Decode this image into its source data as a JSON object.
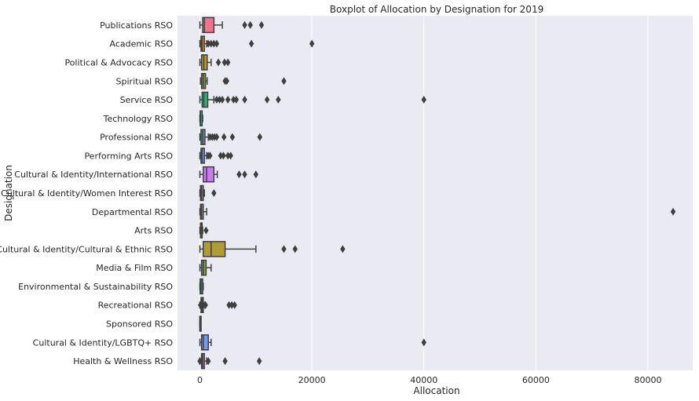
{
  "chart_data": {
    "type": "boxplot",
    "orientation": "horizontal",
    "title": "Boxplot of Allocation by Designation for 2019",
    "xlabel": "Allocation",
    "ylabel": "Designation",
    "xlim": [
      -4000,
      88000
    ],
    "xticks": [
      0,
      20000,
      40000,
      60000,
      80000
    ],
    "grid": true,
    "style": "seaborn-darkgrid",
    "background_color": "#eaeaf2",
    "series": [
      {
        "category": "Publications RSO",
        "color": "#f77189",
        "whisker_low": 0,
        "q1": 500,
        "median": 800,
        "q3": 2500,
        "whisker_high": 4000,
        "outliers": [
          8000,
          9000,
          11000
        ]
      },
      {
        "category": "Academic RSO",
        "color": "#dc8932",
        "whisker_low": 0,
        "q1": 200,
        "median": 400,
        "q3": 800,
        "whisker_high": 1200,
        "outliers": [
          1500,
          2000,
          2500,
          3000,
          9200,
          20000
        ]
      },
      {
        "category": "Political & Advocacy RSO",
        "color": "#ae9d31",
        "whisker_low": 0,
        "q1": 300,
        "median": 700,
        "q3": 1300,
        "whisker_high": 2000,
        "outliers": [
          3300,
          4400,
          5000
        ]
      },
      {
        "category": "Spiritual RSO",
        "color": "#77ab31",
        "whisker_low": 100,
        "q1": 300,
        "median": 600,
        "q3": 1000,
        "whisker_high": 1300,
        "outliers": [
          4500,
          4800,
          15000
        ]
      },
      {
        "category": "Service RSO",
        "color": "#33b07a",
        "whisker_low": 0,
        "q1": 400,
        "median": 700,
        "q3": 1400,
        "whisker_high": 2500,
        "outliers": [
          3000,
          3500,
          4000,
          5000,
          6000,
          6500,
          8000,
          12000,
          14000,
          40000
        ]
      },
      {
        "category": "Technology RSO",
        "color": "#36ada4",
        "whisker_low": 0,
        "q1": 50,
        "median": 100,
        "q3": 400,
        "whisker_high": 500,
        "outliers": []
      },
      {
        "category": "Professional RSO",
        "color": "#38a9c5",
        "whisker_low": 0,
        "q1": 200,
        "median": 500,
        "q3": 900,
        "whisker_high": 1500,
        "outliers": [
          1800,
          2200,
          2600,
          3000,
          4300,
          5800,
          10700
        ]
      },
      {
        "category": "Performing Arts RSO",
        "color": "#6e9bf4",
        "whisker_low": 0,
        "q1": 200,
        "median": 400,
        "q3": 800,
        "whisker_high": 1200,
        "outliers": [
          1500,
          1800,
          3700,
          4200,
          5000,
          5500
        ]
      },
      {
        "category": "Cultural & Identity/International RSO",
        "color": "#cc7af4",
        "whisker_low": 0,
        "q1": 600,
        "median": 1200,
        "q3": 2500,
        "whisker_high": 3100,
        "outliers": [
          7000,
          8000,
          10000
        ]
      },
      {
        "category": "Cultural & Identity/Women Interest RSO",
        "color": "#f565cc",
        "whisker_low": 0,
        "q1": 100,
        "median": 300,
        "q3": 600,
        "whisker_high": 800,
        "outliers": [
          2500
        ]
      },
      {
        "category": "Departmental RSO",
        "color": "#f77189",
        "whisker_low": 0,
        "q1": 100,
        "median": 300,
        "q3": 600,
        "whisker_high": 1200,
        "outliers": [
          84500
        ]
      },
      {
        "category": "Arts RSO",
        "color": "#dc8932",
        "whisker_low": 0,
        "q1": 100,
        "median": 200,
        "q3": 400,
        "whisker_high": 500,
        "outliers": [
          1100
        ]
      },
      {
        "category": "Cultural & Identity/Cultural & Ethnic RSO",
        "color": "#ae9d31",
        "whisker_low": 0,
        "q1": 600,
        "median": 2000,
        "q3": 4500,
        "whisker_high": 10000,
        "outliers": [
          15000,
          17000,
          25500
        ]
      },
      {
        "category": "Media & Film RSO",
        "color": "#77ab31",
        "whisker_low": 0,
        "q1": 300,
        "median": 600,
        "q3": 1100,
        "whisker_high": 2000,
        "outliers": []
      },
      {
        "category": "Environmental & Sustainability RSO",
        "color": "#33b07a",
        "whisker_low": 0,
        "q1": 50,
        "median": 200,
        "q3": 500,
        "whisker_high": 600,
        "outliers": []
      },
      {
        "category": "Recreational RSO",
        "color": "#36ada4",
        "whisker_low": 0,
        "q1": 200,
        "median": 400,
        "q3": 600,
        "whisker_high": 900,
        "outliers": [
          100,
          300,
          600,
          1000,
          5200,
          5700,
          6200
        ]
      },
      {
        "category": "Sponsored RSO",
        "color": "#38a9c5",
        "whisker_low": 0,
        "q1": 0,
        "median": 0,
        "q3": 0,
        "whisker_high": 0,
        "outliers": []
      },
      {
        "category": "Cultural & Identity/LGBTQ+ RSO",
        "color": "#6e9bf4",
        "whisker_low": 0,
        "q1": 300,
        "median": 600,
        "q3": 1500,
        "whisker_high": 2000,
        "outliers": [
          40000
        ]
      },
      {
        "category": "Health & Wellness RSO",
        "color": "#cc7af4",
        "whisker_low": 0,
        "q1": 300,
        "median": 500,
        "q3": 800,
        "whisker_high": 1200,
        "outliers": [
          0,
          1500,
          4500,
          10600
        ]
      }
    ]
  }
}
